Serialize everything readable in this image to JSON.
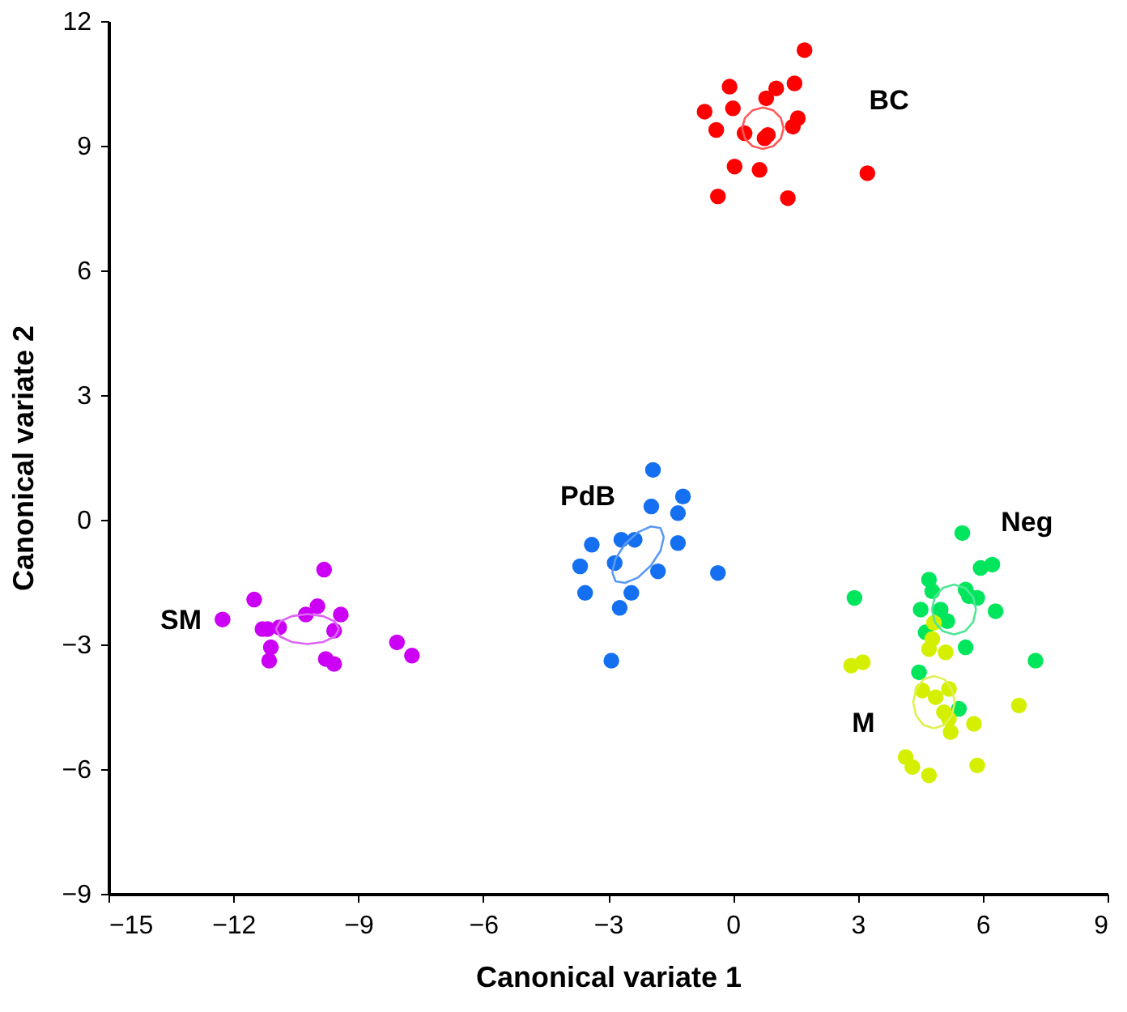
{
  "chart_data": {
    "type": "scatter",
    "xlabel": "Canonical variate 1",
    "ylabel": "Canonical variate 2",
    "xlim": [
      -15,
      9
    ],
    "xticks": [
      -15,
      -12,
      -9,
      -6,
      -3,
      0,
      3,
      6,
      9
    ],
    "ylim": [
      -9,
      12
    ],
    "yticks": [
      -9,
      -6,
      -3,
      0,
      3,
      6,
      9,
      12
    ],
    "grid": false,
    "marker": "circle",
    "series": [
      {
        "color": "#ff0000",
        "x": [
          1.72,
          -0.08,
          1.48,
          1.04,
          0.8,
          -0.68,
          0.0,
          1.56,
          1.44,
          -0.4,
          0.28,
          0.76,
          0.84,
          0.04,
          0.64,
          3.23,
          -0.36,
          1.32
        ],
        "values": [
          11.3,
          10.42,
          10.5,
          10.38,
          10.14,
          9.82,
          9.9,
          9.66,
          9.46,
          9.38,
          9.3,
          9.18,
          9.26,
          8.5,
          8.42,
          8.34,
          7.78,
          7.74
        ]
      },
      {
        "color": "#1470f0",
        "x": [
          -1.92,
          -1.96,
          -1.2,
          -1.32,
          -3.39,
          -2.68,
          -2.36,
          -1.32,
          -3.67,
          -2.84,
          -1.8,
          -0.36,
          -3.55,
          -2.44,
          -2.72,
          -2.92
        ],
        "values": [
          1.2,
          0.32,
          0.56,
          0.16,
          -0.6,
          -0.48,
          -0.48,
          -0.56,
          -1.12,
          -1.04,
          -1.24,
          -1.28,
          -1.76,
          -1.76,
          -2.12,
          -3.39
        ]
      },
      {
        "color": "#cc00f5",
        "x": [
          -9.82,
          -11.5,
          -12.26,
          -9.98,
          -10.26,
          -9.42,
          -11.3,
          -10.9,
          -11.18,
          -9.58,
          -11.1,
          -11.14,
          -9.78,
          -9.58,
          -8.07,
          -7.71
        ],
        "values": [
          -1.2,
          -1.92,
          -2.4,
          -2.08,
          -2.28,
          -2.28,
          -2.63,
          -2.59,
          -2.63,
          -2.67,
          -3.07,
          -3.39,
          -3.35,
          -3.47,
          -2.95,
          -3.27
        ]
      },
      {
        "color": "#00e65c",
        "x": [
          5.51,
          5.95,
          6.23,
          4.71,
          4.79,
          2.92,
          5.59,
          5.67,
          5.87,
          6.31,
          4.51,
          4.99,
          5.15,
          4.63,
          5.59,
          7.27,
          4.47,
          5.43
        ],
        "values": [
          -0.32,
          -1.16,
          -1.08,
          -1.44,
          -1.72,
          -1.88,
          -1.68,
          -1.84,
          -1.88,
          -2.2,
          -2.16,
          -2.16,
          -2.44,
          -2.71,
          -3.07,
          -3.39,
          -3.67,
          -4.55
        ]
      },
      {
        "color": "#d4f000",
        "x": [
          4.83,
          4.79,
          4.71,
          5.11,
          2.84,
          3.12,
          4.55,
          5.19,
          4.87,
          6.87,
          5.07,
          5.19,
          5.79,
          5.23,
          4.15,
          4.31,
          5.87,
          4.71
        ],
        "values": [
          -2.48,
          -2.87,
          -3.11,
          -3.19,
          -3.51,
          -3.43,
          -4.11,
          -4.07,
          -4.27,
          -4.47,
          -4.63,
          -4.79,
          -4.91,
          -5.11,
          -5.71,
          -5.95,
          -5.91,
          -6.15
        ]
      },
      {
        "type": "line",
        "marker": "none",
        "color": "#ff5a5a",
        "x": [
          1.22,
          1.15,
          0.97,
          0.72,
          0.47,
          0.29,
          0.22
        ],
        "values": [
          9.42,
          9.67,
          9.85,
          9.92,
          9.85,
          9.67,
          9.42
        ]
      },
      {
        "type": "line",
        "marker": "none",
        "color": "#ff5a5a",
        "x": [
          0.22,
          0.29,
          0.47,
          0.72,
          0.97,
          1.15,
          1.22
        ],
        "values": [
          9.42,
          9.17,
          8.99,
          8.92,
          8.99,
          9.17,
          9.42
        ]
      },
      {
        "type": "line",
        "marker": "none",
        "color": "#5a9af5",
        "x": [
          -1.66,
          -1.74,
          -1.97,
          -2.28,
          -2.59,
          -2.82,
          -2.9
        ],
        "values": [
          -0.42,
          -0.2,
          -0.16,
          -0.3,
          -0.58,
          -0.94,
          -1.26
        ]
      },
      {
        "type": "line",
        "marker": "none",
        "color": "#5a9af5",
        "x": [
          -2.9,
          -2.82,
          -2.59,
          -2.28,
          -1.97,
          -1.74,
          -1.66
        ],
        "values": [
          -1.26,
          -1.48,
          -1.52,
          -1.39,
          -1.1,
          -0.75,
          -0.42
        ]
      },
      {
        "type": "line",
        "marker": "none",
        "color": "#dc64f5",
        "x": [
          -9.46,
          -9.56,
          -9.84,
          -10.22,
          -10.6,
          -10.88,
          -10.98
        ],
        "values": [
          -2.63,
          -2.45,
          -2.32,
          -2.27,
          -2.32,
          -2.45,
          -2.63
        ]
      },
      {
        "type": "line",
        "marker": "none",
        "color": "#dc64f5",
        "x": [
          -10.98,
          -10.88,
          -10.6,
          -10.22,
          -9.84,
          -9.56,
          -9.46
        ],
        "values": [
          -2.63,
          -2.81,
          -2.94,
          -2.99,
          -2.94,
          -2.81,
          -2.63
        ]
      },
      {
        "type": "line",
        "marker": "none",
        "color": "#50e696",
        "x": [
          5.84,
          5.77,
          5.58,
          5.31,
          5.04,
          4.85,
          4.78
        ],
        "values": [
          -2.16,
          -1.86,
          -1.64,
          -1.56,
          -1.64,
          -1.86,
          -2.16
        ]
      },
      {
        "type": "line",
        "marker": "none",
        "color": "#50e696",
        "x": [
          4.78,
          4.85,
          5.04,
          5.31,
          5.58,
          5.77,
          5.84
        ],
        "values": [
          -2.16,
          -2.46,
          -2.68,
          -2.76,
          -2.68,
          -2.46,
          -2.16
        ]
      },
      {
        "type": "line",
        "marker": "none",
        "color": "#e0f050",
        "x": [
          4.83,
          5.08,
          5.26,
          5.33,
          5.26,
          5.08,
          4.83
        ],
        "values": [
          -5.02,
          -4.94,
          -4.71,
          -4.39,
          -4.08,
          -3.84,
          -3.76
        ]
      },
      {
        "type": "line",
        "marker": "none",
        "color": "#e0f050",
        "x": [
          4.83,
          4.58,
          4.4,
          4.33,
          4.4,
          4.58,
          4.83
        ],
        "values": [
          -3.76,
          -3.84,
          -4.08,
          -4.39,
          -4.71,
          -4.94,
          -5.02
        ]
      }
    ],
    "annotations": [
      "BC",
      "PdB",
      "SM",
      "Neg",
      "M"
    ]
  }
}
